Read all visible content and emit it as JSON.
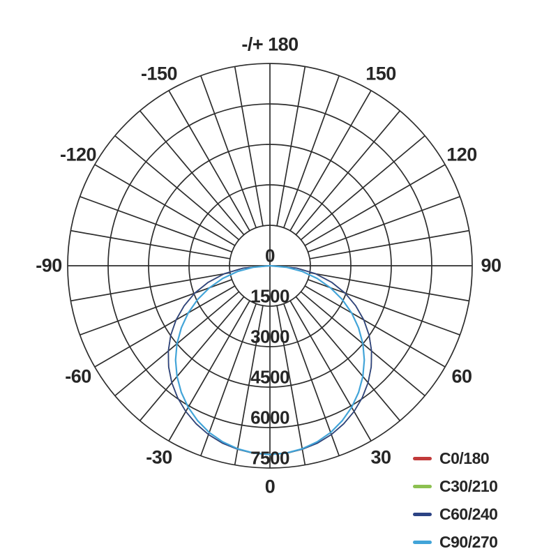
{
  "chart_data": {
    "type": "line",
    "subtype": "polar-photometric-diagram",
    "title": "",
    "radial_axis": {
      "min": 0,
      "max": 7500,
      "tick_step": 1500,
      "tick_labels": [
        "0",
        "1500",
        "3000",
        "4500",
        "6000",
        "7500"
      ]
    },
    "angular_axis": {
      "grid_step_deg": 10,
      "label_step_deg": 30,
      "labels": [
        {
          "text": "-/+ 180",
          "deg": 0
        },
        {
          "text": "150",
          "deg": 30
        },
        {
          "text": "120",
          "deg": 60
        },
        {
          "text": "90",
          "deg": 90
        },
        {
          "text": "60",
          "deg": 120
        },
        {
          "text": "30",
          "deg": 150
        },
        {
          "text": "0",
          "deg": 180
        },
        {
          "text": "-30",
          "deg": 210
        },
        {
          "text": "-60",
          "deg": 240
        },
        {
          "text": "-90",
          "deg": 270
        },
        {
          "text": "-120",
          "deg": 300
        },
        {
          "text": "-150",
          "deg": 330
        }
      ]
    },
    "grid_color": "#2d2d2d",
    "angles_deg": [
      0,
      5,
      10,
      15,
      20,
      25,
      30,
      35,
      40,
      45,
      50,
      55,
      60,
      65,
      70,
      75,
      80,
      85,
      90
    ],
    "symmetric": true,
    "series": [
      {
        "name": "C0/180",
        "color": "#c13a3a",
        "stroke_width": 1.7,
        "values": [
          7000,
          6980,
          6910,
          6810,
          6660,
          6470,
          6240,
          5970,
          5660,
          5310,
          4920,
          4490,
          4020,
          3510,
          2970,
          2370,
          1720,
          990,
          0
        ]
      },
      {
        "name": "C30/210",
        "color": "#8cc051",
        "stroke_width": 1.7,
        "values": [
          7000,
          6980,
          6910,
          6810,
          6660,
          6470,
          6240,
          5970,
          5660,
          5310,
          4920,
          4490,
          4020,
          3510,
          2970,
          2370,
          1720,
          990,
          0
        ]
      },
      {
        "name": "C60/240",
        "color": "#2c4384",
        "stroke_width": 1.7,
        "values": [
          7000,
          6980,
          6910,
          6810,
          6660,
          6470,
          6240,
          5970,
          5660,
          5310,
          4920,
          4490,
          4020,
          3510,
          2970,
          2370,
          1720,
          990,
          0
        ]
      },
      {
        "name": "C90/270",
        "color": "#42a4d8",
        "stroke_width": 2.2,
        "values": [
          7000,
          6970,
          6890,
          6760,
          6580,
          6340,
          6060,
          5730,
          5360,
          4950,
          4500,
          4010,
          3500,
          2960,
          2390,
          1810,
          1220,
          610,
          0
        ]
      }
    ],
    "legend": [
      {
        "label": "C0/180",
        "color": "#c13a3a"
      },
      {
        "label": "C30/210",
        "color": "#8cc051"
      },
      {
        "label": "C60/240",
        "color": "#2c4384"
      },
      {
        "label": "C90/270",
        "color": "#42a4d8"
      }
    ],
    "legend_position": "bottom-right"
  }
}
